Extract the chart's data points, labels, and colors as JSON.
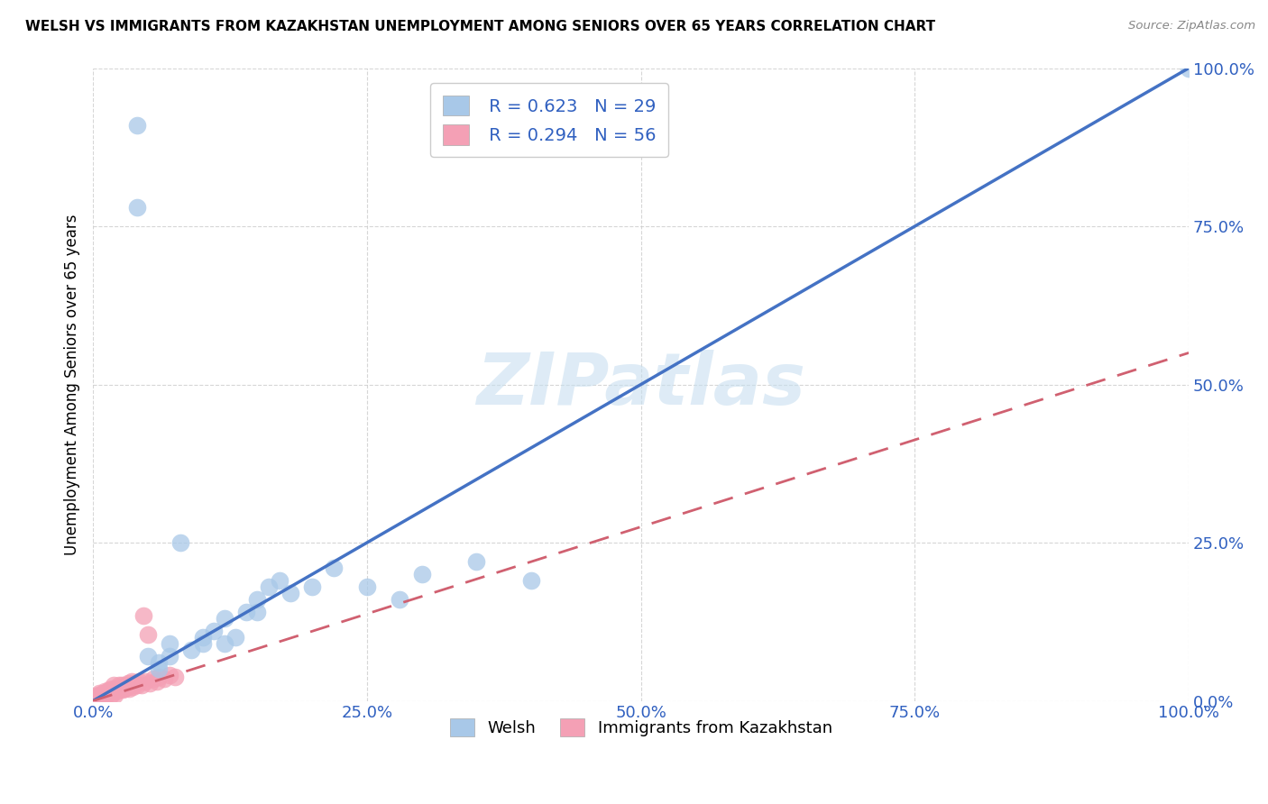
{
  "title": "WELSH VS IMMIGRANTS FROM KAZAKHSTAN UNEMPLOYMENT AMONG SENIORS OVER 65 YEARS CORRELATION CHART",
  "source": "Source: ZipAtlas.com",
  "ylabel": "Unemployment Among Seniors over 65 years",
  "welsh_R": 0.623,
  "welsh_N": 29,
  "kaz_R": 0.294,
  "kaz_N": 56,
  "welsh_color": "#a8c8e8",
  "kaz_color": "#f4a0b5",
  "welsh_line_color": "#4472c4",
  "kaz_line_color": "#d06070",
  "legend_color": "#3060c0",
  "watermark_text": "ZIPatlas",
  "welsh_line_x0": 0.0,
  "welsh_line_y0": 0.0,
  "welsh_line_x1": 1.0,
  "welsh_line_y1": 1.0,
  "kaz_line_x0": 0.0,
  "kaz_line_y0": 0.0,
  "kaz_line_x1": 1.0,
  "kaz_line_y1": 0.55,
  "welsh_x": [
    0.04,
    0.04,
    0.05,
    0.06,
    0.06,
    0.07,
    0.07,
    0.08,
    0.09,
    0.1,
    0.1,
    0.11,
    0.12,
    0.12,
    0.13,
    0.14,
    0.15,
    0.15,
    0.16,
    0.17,
    0.18,
    0.2,
    0.22,
    0.25,
    0.28,
    0.3,
    0.35,
    0.4,
    1.0
  ],
  "welsh_y": [
    0.91,
    0.78,
    0.07,
    0.05,
    0.06,
    0.09,
    0.07,
    0.25,
    0.08,
    0.1,
    0.09,
    0.11,
    0.09,
    0.13,
    0.1,
    0.14,
    0.14,
    0.16,
    0.18,
    0.19,
    0.17,
    0.18,
    0.21,
    0.18,
    0.16,
    0.2,
    0.22,
    0.19,
    1.0
  ],
  "kaz_x": [
    0.001,
    0.001,
    0.001,
    0.003,
    0.003,
    0.004,
    0.004,
    0.005,
    0.005,
    0.006,
    0.007,
    0.008,
    0.009,
    0.01,
    0.01,
    0.011,
    0.012,
    0.013,
    0.014,
    0.015,
    0.016,
    0.017,
    0.018,
    0.019,
    0.02,
    0.021,
    0.022,
    0.023,
    0.024,
    0.025,
    0.026,
    0.027,
    0.028,
    0.029,
    0.03,
    0.031,
    0.032,
    0.033,
    0.034,
    0.035,
    0.036,
    0.037,
    0.038,
    0.04,
    0.042,
    0.044,
    0.046,
    0.048,
    0.05,
    0.052,
    0.055,
    0.058,
    0.06,
    0.065,
    0.07,
    0.075
  ],
  "kaz_y": [
    0.001,
    0.002,
    0.003,
    0.004,
    0.005,
    0.006,
    0.007,
    0.008,
    0.01,
    0.012,
    0.004,
    0.006,
    0.008,
    0.01,
    0.012,
    0.015,
    0.01,
    0.012,
    0.015,
    0.018,
    0.01,
    0.015,
    0.02,
    0.025,
    0.01,
    0.015,
    0.018,
    0.02,
    0.025,
    0.02,
    0.025,
    0.018,
    0.022,
    0.02,
    0.025,
    0.022,
    0.028,
    0.02,
    0.025,
    0.03,
    0.022,
    0.025,
    0.028,
    0.025,
    0.03,
    0.025,
    0.135,
    0.03,
    0.105,
    0.028,
    0.035,
    0.03,
    0.038,
    0.035,
    0.04,
    0.038
  ],
  "xlim": [
    0.0,
    1.0
  ],
  "ylim": [
    0.0,
    1.0
  ],
  "xticks": [
    0.0,
    0.25,
    0.5,
    0.75,
    1.0
  ],
  "yticks": [
    0.0,
    0.25,
    0.5,
    0.75,
    1.0
  ],
  "xtick_labels": [
    "0.0%",
    "25.0%",
    "50.0%",
    "75.0%",
    "100.0%"
  ],
  "ytick_labels": [
    "0.0%",
    "25.0%",
    "50.0%",
    "75.0%",
    "100.0%"
  ],
  "background_color": "#ffffff",
  "grid_color": "#cccccc"
}
